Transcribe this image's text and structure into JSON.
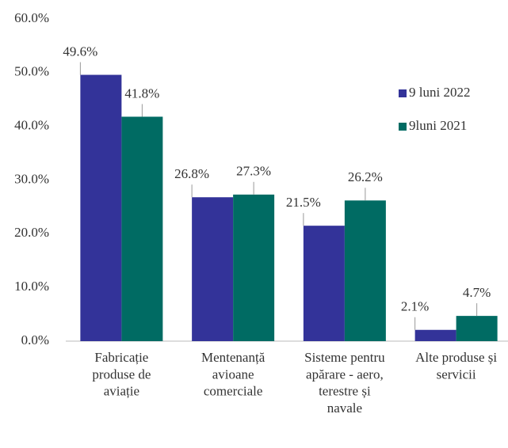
{
  "chart_data": {
    "type": "bar",
    "categories": [
      "Fabricație\nproduse de\naviație",
      "Mentenanță\navioane\ncomerciale",
      "Sisteme pentru\napărare - aero,\nterestre și\nnavale",
      "Alte produse și\nservicii"
    ],
    "series": [
      {
        "name": "9 luni 2022",
        "color": "#333399",
        "values": [
          49.6,
          26.8,
          21.5,
          2.1
        ],
        "value_labels": [
          "49.6%",
          "26.8%",
          "21.5%",
          "2.1%"
        ]
      },
      {
        "name": "9luni 2021",
        "color": "#006b63",
        "values": [
          41.8,
          27.3,
          26.2,
          4.7
        ],
        "value_labels": [
          "41.8%",
          "27.3%",
          "26.2%",
          "4.7%"
        ]
      }
    ],
    "ylim": [
      0,
      60
    ],
    "yticks": [
      {
        "value": 0,
        "label": "0.0%"
      },
      {
        "value": 10,
        "label": "10.0%"
      },
      {
        "value": 20,
        "label": "20.0%"
      },
      {
        "value": 30,
        "label": "30.0%"
      },
      {
        "value": 40,
        "label": "40.0%"
      },
      {
        "value": 50,
        "label": "50.0%"
      },
      {
        "value": 60,
        "label": "60.0%"
      }
    ],
    "grid": false,
    "legend": "right"
  }
}
